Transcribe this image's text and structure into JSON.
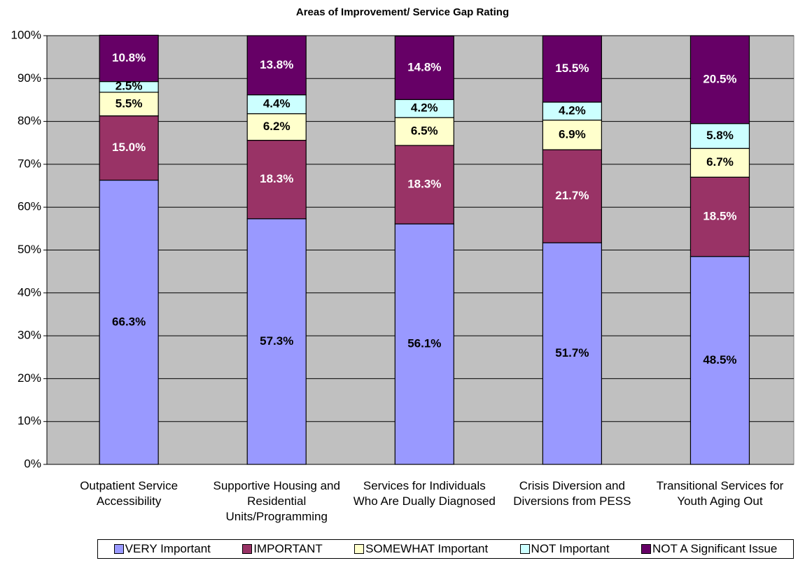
{
  "chart_data": {
    "type": "stacked_bar",
    "title": "Areas of Improvement/ Service Gap Rating",
    "categories": [
      "Outpatient Service Accessibility",
      "Supportive Housing and Residential Units/Programming",
      "Services for Individuals Who Are Dually Diagnosed",
      "Crisis Diversion and Diversions from PESS",
      "Transitional Services for Youth Aging Out"
    ],
    "series": [
      {
        "name": "VERY Important",
        "color": "#9999ff",
        "values": [
          66.3,
          57.3,
          56.1,
          51.7,
          48.5
        ],
        "value_labels": [
          "66.3%",
          "57.3%",
          "56.1%",
          "51.7%",
          "48.5%"
        ]
      },
      {
        "name": "IMPORTANT",
        "color": "#993366",
        "values": [
          15.0,
          18.3,
          18.3,
          21.7,
          18.5
        ],
        "value_labels": [
          "15.0%",
          "18.3%",
          "18.3%",
          "21.7%",
          "18.5%"
        ]
      },
      {
        "name": "SOMEWHAT Important",
        "color": "#ffffcc",
        "values": [
          5.5,
          6.2,
          6.5,
          6.9,
          6.7
        ],
        "value_labels": [
          "5.5%",
          "6.2%",
          "6.5%",
          "6.9%",
          "6.7%"
        ]
      },
      {
        "name": "NOT Important",
        "color": "#ccffff",
        "values": [
          2.5,
          4.4,
          4.2,
          4.2,
          5.8
        ],
        "value_labels": [
          "2.5%",
          "4.4%",
          "4.2%",
          "4.2%",
          "5.8%"
        ]
      },
      {
        "name": "NOT A Significant Issue",
        "color": "#660066",
        "values": [
          10.8,
          13.8,
          14.8,
          15.5,
          20.5
        ],
        "value_labels": [
          "10.8%",
          "13.8%",
          "14.8%",
          "15.5%",
          "20.5%"
        ]
      }
    ],
    "ylim": [
      0,
      100
    ],
    "yticks": [
      {
        "value": 0,
        "label": "0%"
      },
      {
        "value": 10,
        "label": "10%"
      },
      {
        "value": 20,
        "label": "20%"
      },
      {
        "value": 30,
        "label": "30%"
      },
      {
        "value": 40,
        "label": "40%"
      },
      {
        "value": 50,
        "label": "50%"
      },
      {
        "value": 60,
        "label": "60%"
      },
      {
        "value": 70,
        "label": "70%"
      },
      {
        "value": 80,
        "label": "80%"
      },
      {
        "value": 90,
        "label": "90%"
      },
      {
        "value": 100,
        "label": "100%"
      }
    ],
    "grid": true,
    "legend": "bottom",
    "plot_background": "#c0c0c0"
  }
}
